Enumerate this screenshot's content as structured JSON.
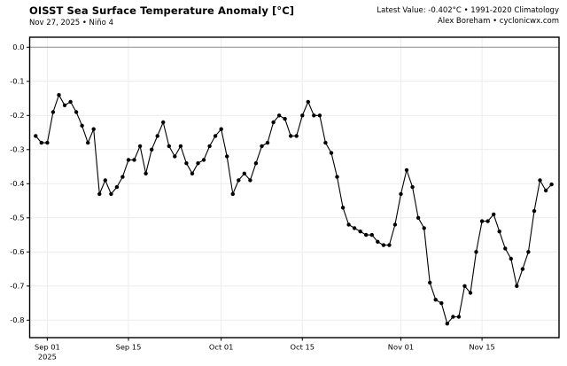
{
  "header": {
    "title": "OISST Sea Surface Temperature Anomaly [°C]",
    "subtitle": "Nov 27, 2025 • Niño 4",
    "latest_line": "Latest Value: -0.402°C • 1991-2020 Climatology",
    "credit_line": "Alex Boreham • cyclonicwx.com"
  },
  "colors": {
    "line": "#000000",
    "marker": "#000000",
    "grid": "#ececec",
    "zero_line": "#8c8c8c",
    "spine": "#000000",
    "background": "#ffffff"
  },
  "chart_data": {
    "type": "line",
    "title": "OISST Sea Surface Temperature Anomaly [°C]",
    "subtitle": "Nov 27, 2025 • Niño 4",
    "xlabel": "",
    "ylabel": "",
    "grid": true,
    "legend": "none",
    "marker": "circle",
    "ylim": [
      0.03,
      -0.851
    ],
    "y_ticks": [
      {
        "v": 0.0,
        "label": "0.0"
      },
      {
        "v": -0.1,
        "label": "-0.1"
      },
      {
        "v": -0.2,
        "label": "-0.2"
      },
      {
        "v": -0.3,
        "label": "-0.3"
      },
      {
        "v": -0.4,
        "label": "-0.4"
      },
      {
        "v": -0.5,
        "label": "-0.5"
      },
      {
        "v": -0.6,
        "label": "-0.6"
      },
      {
        "v": -0.7,
        "label": "-0.7"
      },
      {
        "v": -0.8,
        "label": "-0.8"
      }
    ],
    "x_ticks": [
      {
        "i": 2,
        "label": "Sep 01",
        "sublabel": "2025"
      },
      {
        "i": 16,
        "label": "Sep 15",
        "sublabel": ""
      },
      {
        "i": 32,
        "label": "Oct 01",
        "sublabel": ""
      },
      {
        "i": 46,
        "label": "Oct 15",
        "sublabel": ""
      },
      {
        "i": 63,
        "label": "Nov 01",
        "sublabel": ""
      },
      {
        "i": 77,
        "label": "Nov 15",
        "sublabel": ""
      }
    ],
    "x": [
      "Aug 30",
      "Aug 31",
      "Sep 01",
      "Sep 02",
      "Sep 03",
      "Sep 04",
      "Sep 05",
      "Sep 06",
      "Sep 07",
      "Sep 08",
      "Sep 09",
      "Sep 10",
      "Sep 11",
      "Sep 12",
      "Sep 13",
      "Sep 14",
      "Sep 15",
      "Sep 16",
      "Sep 17",
      "Sep 18",
      "Sep 19",
      "Sep 20",
      "Sep 21",
      "Sep 22",
      "Sep 23",
      "Sep 24",
      "Sep 25",
      "Sep 26",
      "Sep 27",
      "Sep 28",
      "Sep 29",
      "Sep 30",
      "Oct 01",
      "Oct 02",
      "Oct 03",
      "Oct 04",
      "Oct 05",
      "Oct 06",
      "Oct 07",
      "Oct 08",
      "Oct 09",
      "Oct 10",
      "Oct 11",
      "Oct 12",
      "Oct 13",
      "Oct 14",
      "Oct 15",
      "Oct 16",
      "Oct 17",
      "Oct 18",
      "Oct 19",
      "Oct 20",
      "Oct 21",
      "Oct 22",
      "Oct 23",
      "Oct 24",
      "Oct 25",
      "Oct 26",
      "Oct 27",
      "Oct 28",
      "Oct 29",
      "Oct 30",
      "Oct 31",
      "Nov 01",
      "Nov 02",
      "Nov 03",
      "Nov 04",
      "Nov 05",
      "Nov 06",
      "Nov 07",
      "Nov 08",
      "Nov 09",
      "Nov 10",
      "Nov 11",
      "Nov 12",
      "Nov 13",
      "Nov 14",
      "Nov 15",
      "Nov 16",
      "Nov 17",
      "Nov 18",
      "Nov 19",
      "Nov 20",
      "Nov 21",
      "Nov 22",
      "Nov 23",
      "Nov 24",
      "Nov 25",
      "Nov 26",
      "Nov 27"
    ],
    "series": [
      {
        "name": "Niño 4 SST anomaly (°C)",
        "values": [
          -0.26,
          -0.28,
          -0.28,
          -0.19,
          -0.14,
          -0.17,
          -0.16,
          -0.19,
          -0.23,
          -0.28,
          -0.24,
          -0.43,
          -0.39,
          -0.43,
          -0.41,
          -0.38,
          -0.33,
          -0.33,
          -0.29,
          -0.37,
          -0.3,
          -0.26,
          -0.22,
          -0.29,
          -0.32,
          -0.29,
          -0.34,
          -0.37,
          -0.34,
          -0.33,
          -0.29,
          -0.26,
          -0.24,
          -0.32,
          -0.43,
          -0.39,
          -0.37,
          -0.39,
          -0.34,
          -0.29,
          -0.28,
          -0.22,
          -0.2,
          -0.21,
          -0.26,
          -0.26,
          -0.2,
          -0.16,
          -0.2,
          -0.2,
          -0.28,
          -0.31,
          -0.38,
          -0.47,
          -0.52,
          -0.53,
          -0.54,
          -0.55,
          -0.55,
          -0.57,
          -0.58,
          -0.58,
          -0.52,
          -0.43,
          -0.36,
          -0.41,
          -0.5,
          -0.53,
          -0.69,
          -0.74,
          -0.75,
          -0.81,
          -0.79,
          -0.79,
          -0.7,
          -0.72,
          -0.6,
          -0.51,
          -0.51,
          -0.49,
          -0.54,
          -0.59,
          -0.62,
          -0.7,
          -0.65,
          -0.6,
          -0.48,
          -0.39,
          -0.42,
          -0.402
        ]
      }
    ],
    "latest_value": -0.402
  }
}
